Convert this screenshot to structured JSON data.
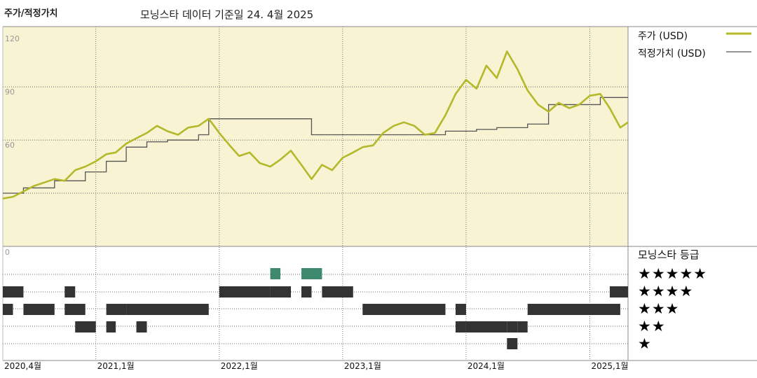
{
  "header": {
    "title": "주가/적정가치",
    "subtitle": "모닝스타 데이터 기준일 24. 4월 2025"
  },
  "legend": {
    "price_label": "주가 (USD)",
    "fair_label": "적정가치 (USD)",
    "price_color": "#b5b82a",
    "fair_color": "#555555"
  },
  "rating": {
    "title": "모닝스타 등급",
    "stars": [
      "★★★★★",
      "★★★★",
      "★★★",
      "★★",
      "★"
    ],
    "colors": {
      "default": "#333333",
      "five": "#3f8a6e"
    }
  },
  "chart_data": {
    "type": "line",
    "ylim": [
      0,
      124
    ],
    "yticks": [
      120,
      90,
      60,
      0
    ],
    "x_range": [
      "2020-04",
      "2025-04-24"
    ],
    "x_ticks": [
      {
        "date": "2020-04",
        "label": "2020,4월"
      },
      {
        "date": "2021-01",
        "label": "2021,1월"
      },
      {
        "date": "2022-01",
        "label": "2022,1월"
      },
      {
        "date": "2023-01",
        "label": "2023,1월"
      },
      {
        "date": "2024-01",
        "label": "2024,1월"
      },
      {
        "date": "2025-01",
        "label": "2025,1월"
      }
    ],
    "grid": true,
    "legend_position": "right",
    "series": [
      {
        "name": "주가 (USD)",
        "points": [
          [
            "2020-04",
            27
          ],
          [
            "2020-05",
            28
          ],
          [
            "2020-06",
            31
          ],
          [
            "2020-07",
            34
          ],
          [
            "2020-08",
            36
          ],
          [
            "2020-09",
            38
          ],
          [
            "2020-10",
            37
          ],
          [
            "2020-11",
            43
          ],
          [
            "2020-12",
            45
          ],
          [
            "2021-01",
            48
          ],
          [
            "2021-02",
            52
          ],
          [
            "2021-03",
            53
          ],
          [
            "2021-04",
            58
          ],
          [
            "2021-05",
            61
          ],
          [
            "2021-06",
            64
          ],
          [
            "2021-07",
            68
          ],
          [
            "2021-08",
            65
          ],
          [
            "2021-09",
            63
          ],
          [
            "2021-10",
            67
          ],
          [
            "2021-11",
            68
          ],
          [
            "2021-12",
            72
          ],
          [
            "2022-01",
            64
          ],
          [
            "2022-02",
            57
          ],
          [
            "2022-03",
            51
          ],
          [
            "2022-04",
            53
          ],
          [
            "2022-05",
            47
          ],
          [
            "2022-06",
            45
          ],
          [
            "2022-07",
            49
          ],
          [
            "2022-08",
            54
          ],
          [
            "2022-09",
            46
          ],
          [
            "2022-10",
            38
          ],
          [
            "2022-11",
            46
          ],
          [
            "2022-12",
            43
          ],
          [
            "2023-01",
            50
          ],
          [
            "2023-02",
            53
          ],
          [
            "2023-03",
            56
          ],
          [
            "2023-04",
            57
          ],
          [
            "2023-05",
            64
          ],
          [
            "2023-06",
            68
          ],
          [
            "2023-07",
            70
          ],
          [
            "2023-08",
            68
          ],
          [
            "2023-09",
            63
          ],
          [
            "2023-10",
            64
          ],
          [
            "2023-11",
            74
          ],
          [
            "2023-12",
            86
          ],
          [
            "2024-01",
            94
          ],
          [
            "2024-02",
            89
          ],
          [
            "2024-03",
            102
          ],
          [
            "2024-04",
            95
          ],
          [
            "2024-05",
            110
          ],
          [
            "2024-06",
            100
          ],
          [
            "2024-07",
            88
          ],
          [
            "2024-08",
            80
          ],
          [
            "2024-09",
            76
          ],
          [
            "2024-10",
            81
          ],
          [
            "2024-11",
            78
          ],
          [
            "2024-12",
            80
          ],
          [
            "2025-01",
            85
          ],
          [
            "2025-02",
            86
          ],
          [
            "2025-03",
            78
          ],
          [
            "2025-04",
            67
          ],
          [
            "2025-04-24",
            70
          ]
        ]
      },
      {
        "name": "적정가치 (USD)",
        "step_points": [
          [
            "2020-04",
            30
          ],
          [
            "2020-06",
            33
          ],
          [
            "2020-09",
            37
          ],
          [
            "2020-12",
            42
          ],
          [
            "2021-02",
            48
          ],
          [
            "2021-04",
            56
          ],
          [
            "2021-06",
            59
          ],
          [
            "2021-08",
            60
          ],
          [
            "2021-11",
            63
          ],
          [
            "2021-12",
            72
          ],
          [
            "2022-10",
            63
          ],
          [
            "2023-02",
            63
          ],
          [
            "2023-11",
            65
          ],
          [
            "2024-02",
            66
          ],
          [
            "2024-04",
            67
          ],
          [
            "2024-07",
            69
          ],
          [
            "2024-09",
            80
          ],
          [
            "2025-01",
            80
          ],
          [
            "2025-02",
            84
          ],
          [
            "2025-04-24",
            84
          ]
        ]
      }
    ],
    "rating_history": [
      {
        "stars": 5,
        "spans": [
          [
            "2022-06",
            "2022-07"
          ],
          [
            "2022-09",
            "2022-11"
          ]
        ]
      },
      {
        "stars": 4,
        "spans": [
          [
            "2020-04",
            "2020-06"
          ],
          [
            "2020-10",
            "2020-11"
          ],
          [
            "2022-01",
            "2022-06"
          ],
          [
            "2022-06",
            "2022-08"
          ],
          [
            "2022-09",
            "2022-10"
          ],
          [
            "2022-11",
            "2023-02"
          ],
          [
            "2025-03",
            "2025-04-24"
          ]
        ]
      },
      {
        "stars": 3,
        "spans": [
          [
            "2020-04",
            "2020-05"
          ],
          [
            "2020-06",
            "2020-09"
          ],
          [
            "2020-10",
            "2020-12"
          ],
          [
            "2021-02",
            "2021-04"
          ],
          [
            "2021-04",
            "2021-12"
          ],
          [
            "2023-03",
            "2023-11"
          ],
          [
            "2023-12",
            "2024-01"
          ],
          [
            "2024-07",
            "2025-04"
          ]
        ]
      },
      {
        "stars": 2,
        "spans": [
          [
            "2020-11",
            "2021-01"
          ],
          [
            "2021-02",
            "2021-03"
          ],
          [
            "2021-05",
            "2021-06"
          ],
          [
            "2023-12",
            "2024-01"
          ],
          [
            "2024-01",
            "2024-05"
          ],
          [
            "2024-05",
            "2024-06"
          ],
          [
            "2024-06",
            "2024-07"
          ]
        ]
      },
      {
        "stars": 1,
        "spans": [
          [
            "2024-05",
            "2024-06"
          ]
        ]
      }
    ]
  }
}
